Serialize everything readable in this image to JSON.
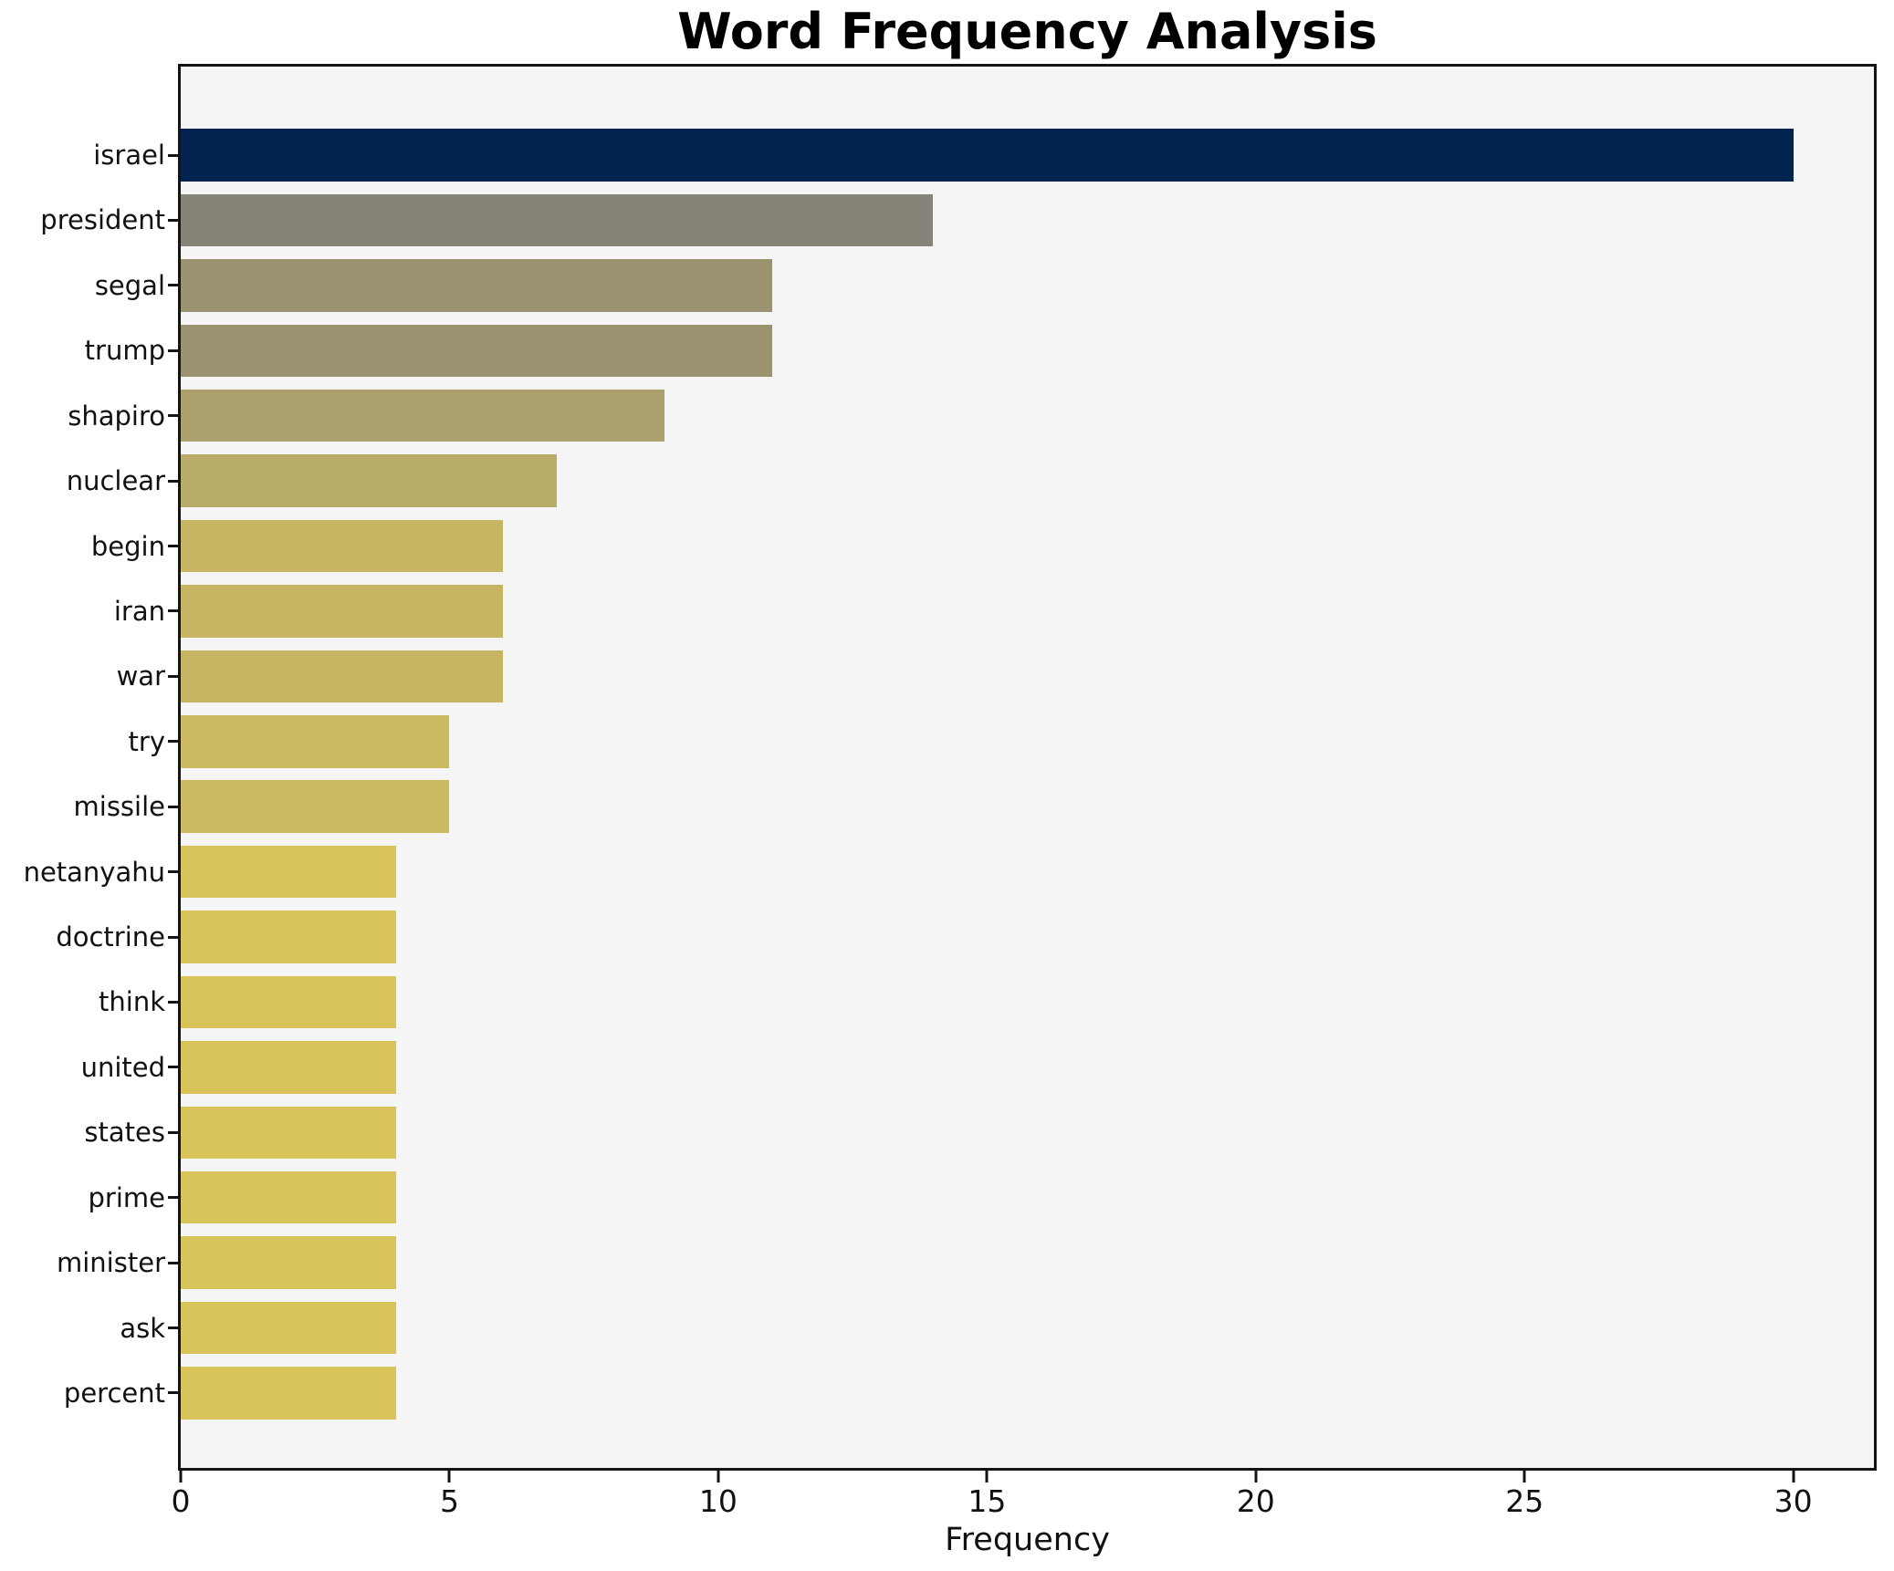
{
  "title": "Word Frequency Analysis",
  "chart_data": {
    "type": "bar",
    "orientation": "horizontal",
    "title": "Word Frequency Analysis",
    "xlabel": "Frequency",
    "ylabel": "",
    "categories": [
      "israel",
      "president",
      "segal",
      "trump",
      "shapiro",
      "nuclear",
      "begin",
      "iran",
      "war",
      "try",
      "missile",
      "netanyahu",
      "doctrine",
      "think",
      "united",
      "states",
      "prime",
      "minister",
      "ask",
      "percent"
    ],
    "values": [
      30,
      14,
      11,
      11,
      9,
      7,
      6,
      6,
      6,
      5,
      5,
      4,
      4,
      4,
      4,
      4,
      4,
      4,
      4,
      4
    ],
    "bar_colors": [
      "#022350",
      "#868379",
      "#9b9370",
      "#9b9370",
      "#aca06c",
      "#b9ac6a",
      "#c6b562",
      "#c6b562",
      "#c6b562",
      "#ccba60",
      "#ccba60",
      "#d8c45b",
      "#d8c45b",
      "#d8c45b",
      "#d8c45b",
      "#d8c45b",
      "#d8c45b",
      "#d8c45b",
      "#d8c45b",
      "#d8c45b"
    ],
    "xlim": [
      0,
      31.5
    ],
    "xticks": [
      0,
      5,
      10,
      15,
      20,
      25,
      30
    ],
    "grid": false,
    "legend": null,
    "plot_bg": "#f5f5f5",
    "fig_bg": "#ffffff",
    "spine_color": "#141414",
    "bar_color_ramp": "cividis reversed (high value = dark navy, low value = yellow)"
  }
}
